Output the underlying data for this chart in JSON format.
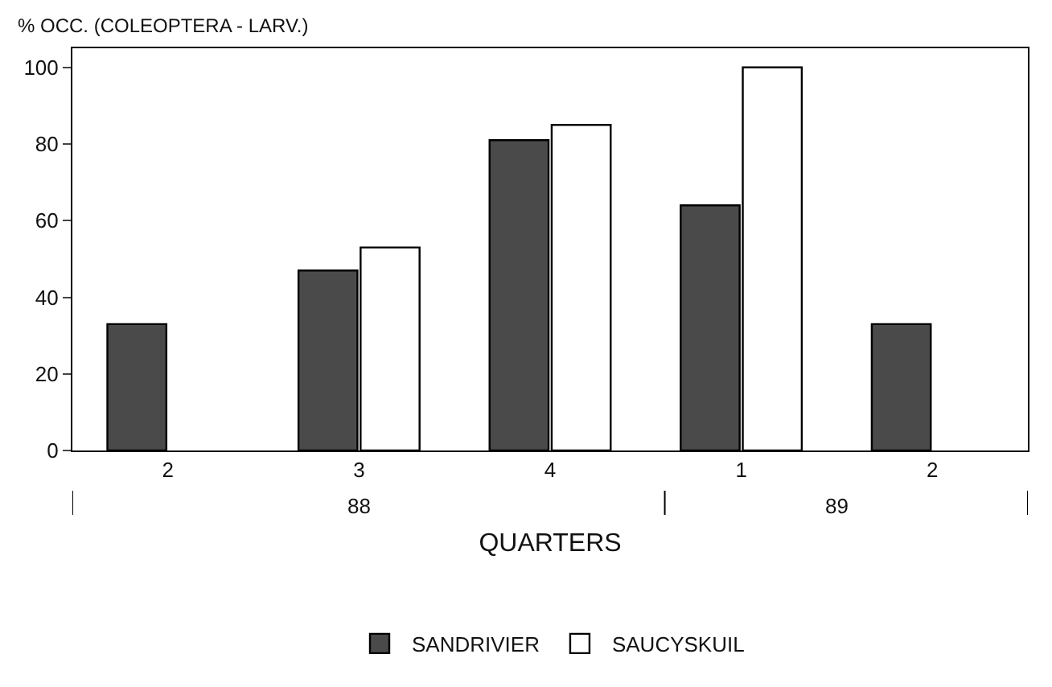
{
  "chart_data": {
    "type": "bar",
    "ylabel": "% OCC. (COLEOPTERA - LARV.)",
    "xlabel": "QUARTERS",
    "categories": [
      "2",
      "3",
      "4",
      "1",
      "2"
    ],
    "series": [
      {
        "name": "SANDRIVIER",
        "color": "#4a4a4a",
        "values": [
          33,
          47,
          81,
          64,
          33
        ]
      },
      {
        "name": "SAUCYSKUIL",
        "color": "#ffffff",
        "values": [
          null,
          53,
          85,
          100,
          null
        ]
      }
    ],
    "ylim": [
      0,
      105
    ],
    "yticks": [
      0,
      20,
      40,
      60,
      80,
      100
    ],
    "legend": "bottom",
    "annotations": [
      "88",
      "89"
    ]
  }
}
